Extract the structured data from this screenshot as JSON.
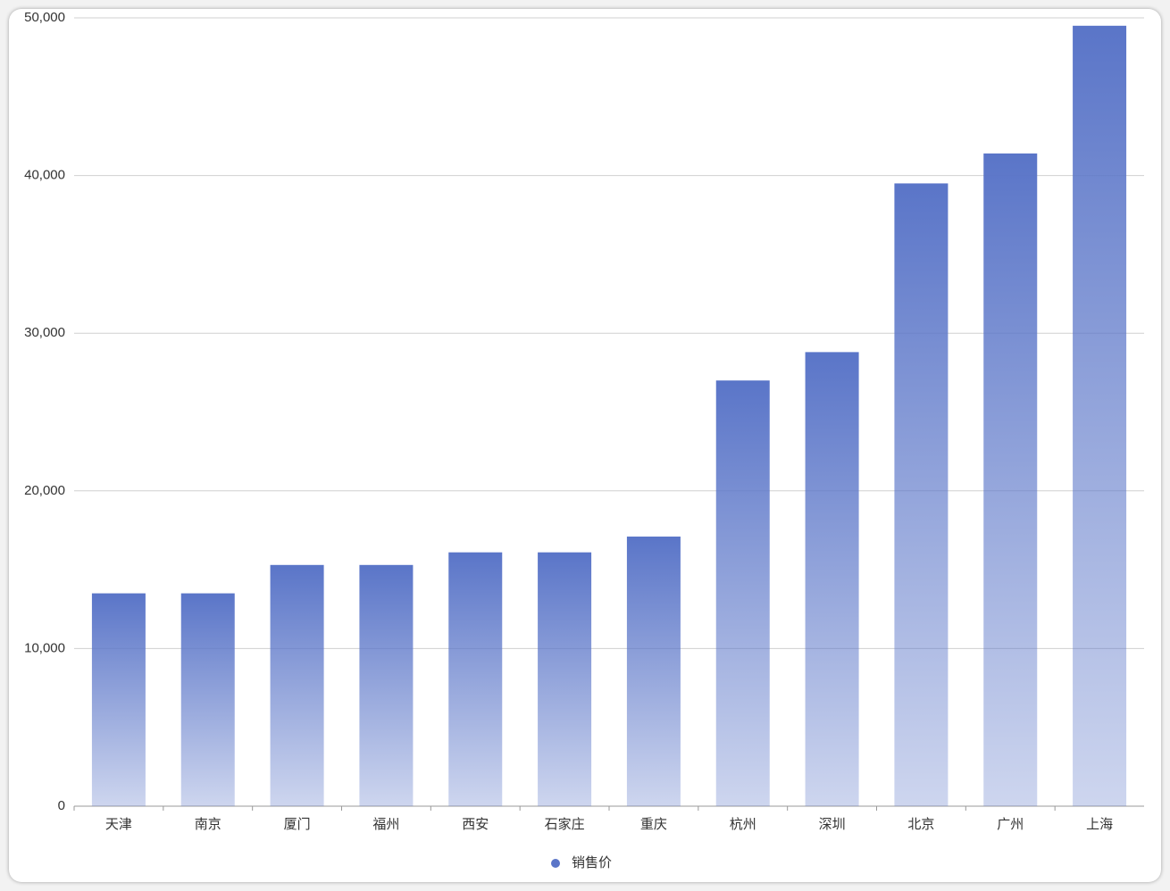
{
  "chart_data": {
    "type": "bar",
    "categories": [
      "天津",
      "南京",
      "厦门",
      "福州",
      "西安",
      "石家庄",
      "重庆",
      "杭州",
      "深圳",
      "北京",
      "广州",
      "上海"
    ],
    "series": [
      {
        "name": "销售价",
        "color": "#5a75c8",
        "values": [
          13500,
          13500,
          15300,
          15300,
          16100,
          16100,
          17100,
          27000,
          28800,
          39500,
          41400,
          49500
        ]
      }
    ],
    "ylim": [
      0,
      50000
    ],
    "yticks": [
      0,
      {
        "value": 10000,
        "label": "10,000"
      },
      {
        "value": 20000,
        "label": "20,000"
      },
      {
        "value": 30000,
        "label": "30,000"
      },
      {
        "value": 40000,
        "label": "40,000"
      },
      {
        "value": 50000,
        "label": "50,000"
      }
    ],
    "grid": true,
    "legend": "bottom"
  }
}
